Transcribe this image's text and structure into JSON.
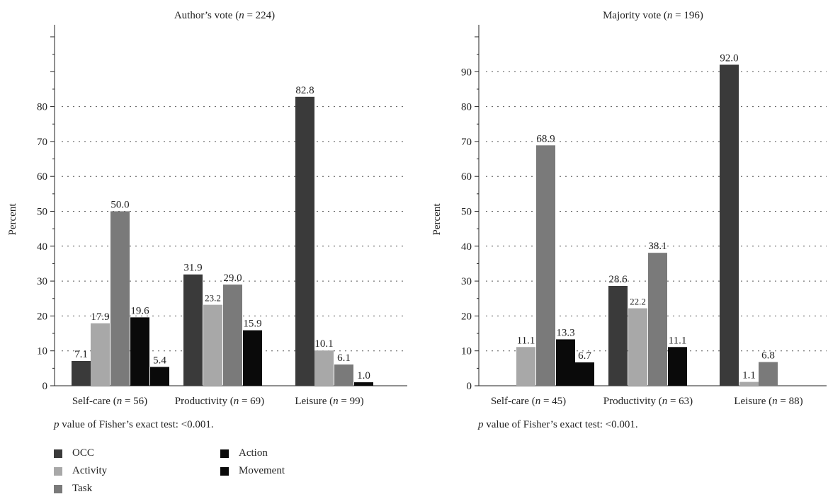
{
  "chart_data": [
    {
      "type": "bar",
      "title_prefix": "Author’s vote (",
      "title_n": "n",
      "title_suffix": " = 224)",
      "ylabel": "Percent",
      "ylim": [
        0,
        100
      ],
      "yticks": [
        0,
        10,
        20,
        30,
        40,
        50,
        60,
        70,
        80
      ],
      "grid": "dotted horizontal",
      "categories": [
        {
          "pre": "Self-care (",
          "n": "n",
          "post": " = 56)"
        },
        {
          "pre": "Productivity (",
          "n": "n",
          "post": " = 69)"
        },
        {
          "pre": "Leisure (",
          "n": "n",
          "post": " = 99)"
        }
      ],
      "series": [
        {
          "name": "OCC",
          "values": [
            7.1,
            31.9,
            82.8
          ],
          "labels": [
            "7.1",
            "31.9",
            "82.8"
          ]
        },
        {
          "name": "Activity",
          "values": [
            17.9,
            23.2,
            10.1
          ],
          "labels": [
            "17.9",
            "23.2",
            "10.1"
          ]
        },
        {
          "name": "Task",
          "values": [
            50.0,
            29.0,
            6.1
          ],
          "labels": [
            "50.0",
            "29.0",
            "6.1"
          ]
        },
        {
          "name": "Action",
          "values": [
            19.6,
            15.9,
            1.0
          ],
          "labels": [
            "19.6",
            "15.9",
            "1.0"
          ]
        },
        {
          "name": "Movement",
          "values": [
            5.4,
            null,
            null
          ],
          "labels": [
            "5.4",
            "",
            ""
          ]
        }
      ],
      "note_p": "p",
      "note_text": " value of Fisher’s exact test: <0.001."
    },
    {
      "type": "bar",
      "title_prefix": "Majority vote (",
      "title_n": "n",
      "title_suffix": " = 196)",
      "ylabel": "Percent",
      "ylim": [
        0,
        100
      ],
      "yticks": [
        0,
        10,
        20,
        30,
        40,
        50,
        60,
        70,
        80,
        90
      ],
      "grid": "dotted horizontal",
      "categories": [
        {
          "pre": "Self-care (",
          "n": "n",
          "post": " = 45)"
        },
        {
          "pre": "Productivity (",
          "n": "n",
          "post": " = 63)"
        },
        {
          "pre": "Leisure (",
          "n": "n",
          "post": " = 88)"
        }
      ],
      "series": [
        {
          "name": "OCC",
          "values": [
            null,
            28.6,
            92.0
          ],
          "labels": [
            "",
            "28.6",
            "92.0"
          ]
        },
        {
          "name": "Activity",
          "values": [
            11.1,
            22.2,
            1.1
          ],
          "labels": [
            "11.1",
            "22.2",
            "1.1"
          ]
        },
        {
          "name": "Task",
          "values": [
            68.9,
            38.1,
            6.8
          ],
          "labels": [
            "68.9",
            "38.1",
            "6.8"
          ]
        },
        {
          "name": "Action",
          "values": [
            13.3,
            11.1,
            null
          ],
          "labels": [
            "13.3",
            "11.1",
            ""
          ]
        },
        {
          "name": "Movement",
          "values": [
            6.7,
            null,
            null
          ],
          "labels": [
            "6.7",
            "",
            ""
          ]
        }
      ],
      "note_p": "p",
      "note_text": " value of Fisher’s exact test: <0.001."
    }
  ],
  "legend": [
    {
      "name": "OCC",
      "color": "#3a3a3a"
    },
    {
      "name": "Activity",
      "color": "#a8a8a8"
    },
    {
      "name": "Task",
      "color": "#7a7a7a"
    },
    {
      "name": "Action",
      "color": "#0a0a0a"
    },
    {
      "name": "Movement",
      "color": "#0a0a0a"
    }
  ],
  "colors": {
    "OCC": "#3a3a3a",
    "Activity": "#a8a8a8",
    "Task": "#7a7a7a",
    "Action": "#0a0a0a",
    "Movement": "#0a0a0a"
  }
}
